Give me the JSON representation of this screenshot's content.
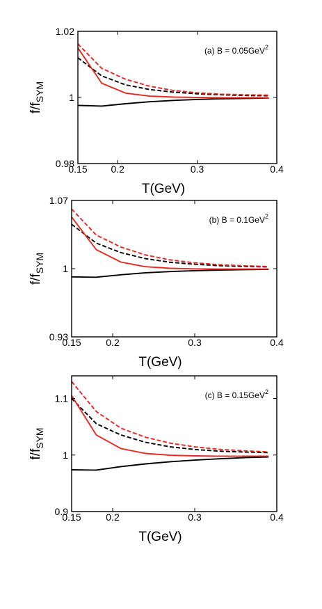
{
  "chart_data": [
    {
      "type": "line",
      "annotation": {
        "prefix": "(a) B = 0.05GeV",
        "sup": "2"
      },
      "xlabel": "T(GeV)",
      "ylabel": {
        "main": "f/f",
        "sub": "SYM"
      },
      "xlim": [
        0.15,
        0.4
      ],
      "ylim": [
        0.98,
        1.02
      ],
      "xticks": [
        0.15,
        0.2,
        0.3,
        0.4
      ],
      "xtick_labels": [
        "0.15",
        "0.2",
        "0.3",
        "0.4"
      ],
      "yticks": [
        0.98,
        1.0,
        1.02
      ],
      "ytick_labels": [
        "0.98",
        "1",
        "1.02"
      ],
      "grid": false,
      "series": [
        {
          "color": "#000000",
          "style": "solid",
          "x": [
            0.15,
            0.18,
            0.21,
            0.24,
            0.27,
            0.3,
            0.33,
            0.36,
            0.39
          ],
          "y": [
            0.9976,
            0.9974,
            0.9981,
            0.9987,
            0.9991,
            0.9994,
            0.9996,
            0.9997,
            0.9998
          ]
        },
        {
          "color": "#000000",
          "style": "dashed",
          "x": [
            0.15,
            0.18,
            0.21,
            0.24,
            0.27,
            0.3,
            0.33,
            0.36,
            0.39
          ],
          "y": [
            1.012,
            1.0065,
            1.0038,
            1.0024,
            1.0016,
            1.0011,
            1.0008,
            1.0006,
            1.0005
          ]
        },
        {
          "color": "#e8271e",
          "style": "solid",
          "x": [
            0.15,
            0.18,
            0.21,
            0.24,
            0.27,
            0.3,
            0.33,
            0.36,
            0.39
          ],
          "y": [
            1.015,
            1.0043,
            1.0013,
            1.0004,
            1.0001,
            1.0,
            0.9999,
            0.9999,
            0.9999
          ]
        },
        {
          "color": "#e8271e",
          "style": "dashed",
          "x": [
            0.15,
            0.18,
            0.21,
            0.24,
            0.27,
            0.3,
            0.33,
            0.36,
            0.39
          ],
          "y": [
            1.0162,
            1.0088,
            1.0055,
            1.0034,
            1.0021,
            1.0014,
            1.001,
            1.0008,
            1.0007
          ]
        }
      ]
    },
    {
      "type": "line",
      "annotation": {
        "prefix": "(b) B = 0.1GeV",
        "sup": "2"
      },
      "xlabel": "T(GeV)",
      "ylabel": {
        "main": "f/f",
        "sub": "SYM"
      },
      "xlim": [
        0.15,
        0.4
      ],
      "ylim": [
        0.93,
        1.07
      ],
      "xticks": [
        0.15,
        0.2,
        0.3,
        0.4
      ],
      "xtick_labels": [
        "0.15",
        "0.2",
        "0.3",
        "0.4"
      ],
      "yticks": [
        0.93,
        1.0,
        1.07
      ],
      "ytick_labels": [
        "0.93",
        "1",
        "1.07"
      ],
      "grid": false,
      "series": [
        {
          "color": "#000000",
          "style": "solid",
          "x": [
            0.15,
            0.18,
            0.21,
            0.24,
            0.27,
            0.3,
            0.33,
            0.36,
            0.39
          ],
          "y": [
            0.9916,
            0.9912,
            0.9937,
            0.9958,
            0.997,
            0.9979,
            0.9985,
            0.999,
            0.9993
          ]
        },
        {
          "color": "#000000",
          "style": "dashed",
          "x": [
            0.15,
            0.18,
            0.21,
            0.24,
            0.27,
            0.3,
            0.33,
            0.36,
            0.39
          ],
          "y": [
            1.0455,
            1.0262,
            1.0165,
            1.0103,
            1.0066,
            1.0045,
            1.0031,
            1.0022,
            1.0018
          ]
        },
        {
          "color": "#e8271e",
          "style": "solid",
          "x": [
            0.15,
            0.18,
            0.21,
            0.24,
            0.27,
            0.3,
            0.33,
            0.36,
            0.39
          ],
          "y": [
            1.053,
            1.0195,
            1.0068,
            1.002,
            1.0004,
            0.9998,
            0.9996,
            0.9996,
            0.9996
          ]
        },
        {
          "color": "#e8271e",
          "style": "dashed",
          "x": [
            0.15,
            0.18,
            0.21,
            0.24,
            0.27,
            0.3,
            0.33,
            0.36,
            0.39
          ],
          "y": [
            1.0612,
            1.0345,
            1.0222,
            1.0141,
            1.009,
            1.006,
            1.0041,
            1.0029,
            1.0022
          ]
        }
      ]
    },
    {
      "type": "line",
      "annotation": {
        "prefix": "(c) B = 0.15GeV",
        "sup": "2"
      },
      "xlabel": "T(GeV)",
      "ylabel": {
        "main": "f/f",
        "sub": "SYM"
      },
      "xlim": [
        0.15,
        0.4
      ],
      "ylim": [
        0.9,
        1.14
      ],
      "xticks": [
        0.15,
        0.2,
        0.3,
        0.4
      ],
      "xtick_labels": [
        "0.15",
        "0.2",
        "0.3",
        "0.4"
      ],
      "yticks": [
        0.9,
        1.0,
        1.1
      ],
      "ytick_labels": [
        "0.9",
        "1",
        "1.1"
      ],
      "grid": false,
      "series": [
        {
          "color": "#000000",
          "style": "solid",
          "x": [
            0.15,
            0.18,
            0.21,
            0.24,
            0.27,
            0.3,
            0.33,
            0.36,
            0.39
          ],
          "y": [
            0.9738,
            0.9733,
            0.9795,
            0.9843,
            0.9881,
            0.991,
            0.9933,
            0.9952,
            0.9965
          ]
        },
        {
          "color": "#000000",
          "style": "dashed",
          "x": [
            0.15,
            0.18,
            0.21,
            0.24,
            0.27,
            0.3,
            0.33,
            0.36,
            0.39
          ],
          "y": [
            1.1,
            1.0555,
            1.0355,
            1.0225,
            1.0145,
            1.0098,
            1.0068,
            1.0052,
            1.0042
          ]
        },
        {
          "color": "#e8271e",
          "style": "solid",
          "x": [
            0.15,
            0.18,
            0.21,
            0.24,
            0.27,
            0.3,
            0.33,
            0.36,
            0.39
          ],
          "y": [
            1.105,
            1.0355,
            1.0115,
            1.0028,
            0.9996,
            0.9985,
            0.998,
            0.998,
            0.998
          ]
        },
        {
          "color": "#e8271e",
          "style": "dashed",
          "x": [
            0.15,
            0.18,
            0.21,
            0.24,
            0.27,
            0.3,
            0.33,
            0.36,
            0.39
          ],
          "y": [
            1.13,
            1.077,
            1.0475,
            1.0315,
            1.021,
            1.0145,
            1.01,
            1.0075,
            1.0055
          ]
        }
      ]
    }
  ]
}
